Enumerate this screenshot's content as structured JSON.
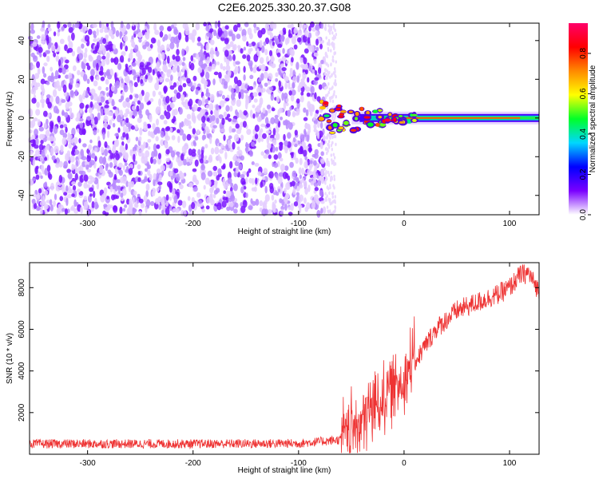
{
  "title": "C2E6.2025.330.20.37.G08",
  "chart_data": [
    {
      "type": "heatmap",
      "name": "spectrogram",
      "xlabel": "Height of straight line (km)",
      "ylabel": "Frequency (Hz)",
      "xlim": [
        -355,
        128
      ],
      "ylim": [
        -50,
        49
      ],
      "x_ticks": [
        -300,
        -200,
        -100,
        0,
        100
      ],
      "y_ticks": [
        -40,
        -20,
        0,
        20,
        40
      ],
      "colorbar": {
        "label": "Normalized spectral amplitude",
        "range": [
          0.0,
          0.95
        ],
        "ticks": [
          0.0,
          0.2,
          0.4,
          0.6,
          0.8
        ],
        "colormap": [
          "#ffffff",
          "#7a00ff",
          "#0000ff",
          "#00d7ff",
          "#00ff28",
          "#ffff00",
          "#ff8a00",
          "#ff0000",
          "#ff006a"
        ]
      },
      "description_values": {
        "noise_region_x": [
          -355,
          -75
        ],
        "noise_amplitude": 0.05,
        "signal_line_freq_hz": 0,
        "signal_start_x": -80,
        "signal_peak_amplitude": 0.85
      }
    },
    {
      "type": "line",
      "name": "snr",
      "xlabel": "Height of straight line (km)",
      "ylabel": "SNR (10 * v/v)",
      "xlim": [
        -355,
        128
      ],
      "ylim": [
        0,
        9200
      ],
      "x_ticks": [
        -300,
        -200,
        -100,
        0,
        100
      ],
      "y_ticks": [
        2000,
        4000,
        6000,
        8000
      ],
      "color": "#ee3333",
      "trend_points": [
        [
          -355,
          500
        ],
        [
          -200,
          500
        ],
        [
          -100,
          520
        ],
        [
          -60,
          700
        ],
        [
          -45,
          1400
        ],
        [
          -30,
          2200
        ],
        [
          -15,
          3000
        ],
        [
          0,
          3700
        ],
        [
          15,
          4800
        ],
        [
          30,
          6000
        ],
        [
          50,
          6900
        ],
        [
          70,
          7300
        ],
        [
          90,
          7700
        ],
        [
          100,
          8000
        ],
        [
          110,
          8600
        ],
        [
          118,
          8700
        ],
        [
          128,
          7800
        ]
      ]
    }
  ]
}
